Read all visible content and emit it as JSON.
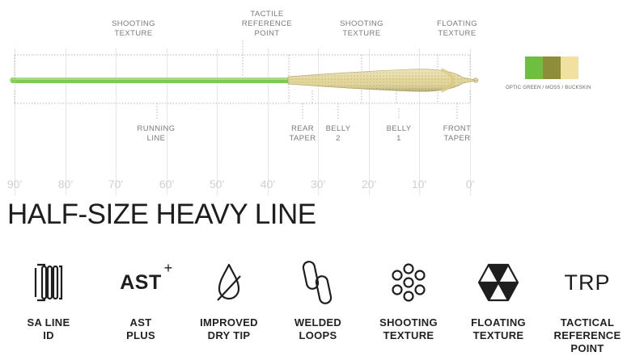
{
  "top_labels": [
    {
      "id": "shooting-texture-1",
      "text": "SHOOTING\nTEXTURE"
    },
    {
      "id": "tactile-reference-point",
      "text": "TACTILE\nREFERENCE\nPOINT"
    },
    {
      "id": "shooting-texture-2",
      "text": "SHOOTING\nTEXTURE"
    },
    {
      "id": "floating-texture",
      "text": "FLOATING\nTEXTURE"
    }
  ],
  "bottom_labels": [
    {
      "id": "running-line",
      "text": "RUNNING\nLINE"
    },
    {
      "id": "rear-taper",
      "text": "REAR\nTAPER"
    },
    {
      "id": "belly-2",
      "text": "BELLY\n2"
    },
    {
      "id": "belly-1",
      "text": "BELLY\n1"
    },
    {
      "id": "front-taper",
      "text": "FRONT\nTAPER"
    }
  ],
  "ruler": [
    "90'",
    "80'",
    "70'",
    "60'",
    "50'",
    "40'",
    "30'",
    "20'",
    "10'",
    "0'"
  ],
  "color": {
    "name": "OPTIC GREEN / MOSS / BUCKSKIN",
    "swatches": [
      "#6cbf3f",
      "#8e8d3a",
      "#f2e0a0"
    ]
  },
  "line_colors": {
    "running": "#7cc957",
    "head": "#e6d9a0",
    "head_shade": "#b9ad6a"
  },
  "title": "HALF-SIZE HEAVY LINE",
  "features": [
    {
      "id": "sa-line-id",
      "icon": "sa-line-id-icon",
      "name": "SA LINE\nID"
    },
    {
      "id": "ast-plus",
      "icon": "ast-plus-icon",
      "name": "AST\nPLUS",
      "icon_text": "AST",
      "icon_sup": "+"
    },
    {
      "id": "improved-dry-tip",
      "icon": "dry-tip-icon",
      "name": "IMPROVED\nDRY TIP"
    },
    {
      "id": "welded-loops",
      "icon": "welded-loops-icon",
      "name": "WELDED\nLOOPS"
    },
    {
      "id": "shooting-texture",
      "icon": "shooting-texture-icon",
      "name": "SHOOTING\nTEXTURE"
    },
    {
      "id": "floating-texture",
      "icon": "floating-texture-icon",
      "name": "FLOATING\nTEXTURE"
    },
    {
      "id": "tactical-reference-point",
      "icon": "trp-icon",
      "name": "TACTICAL\nREFERENCE\nPOINT",
      "icon_text": "TRP"
    }
  ]
}
